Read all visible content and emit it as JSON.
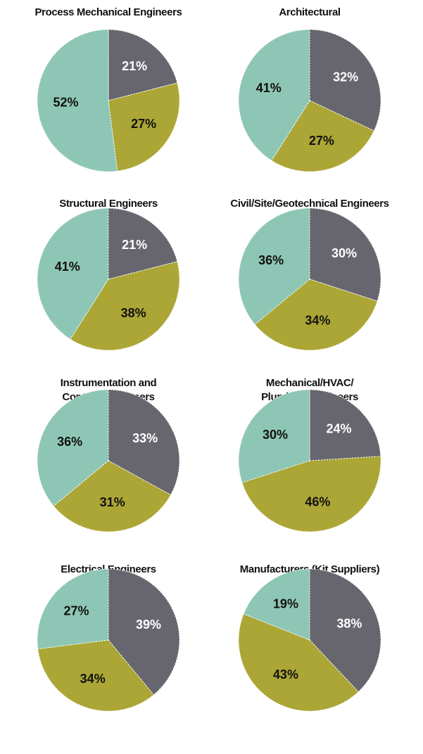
{
  "chart_data": [
    {
      "type": "pie",
      "title": "Process Mechanical Engineers",
      "values": [
        21,
        27,
        52
      ],
      "value_labels": [
        "21%",
        "27%",
        "52%"
      ],
      "colors": [
        "#67666f",
        "#aba635",
        "#8ec6b5"
      ],
      "label_colors": [
        "#ffffff",
        "#111111",
        "#111111"
      ]
    },
    {
      "type": "pie",
      "title": "Architectural",
      "values": [
        32,
        27,
        41
      ],
      "value_labels": [
        "32%",
        "27%",
        "41%"
      ],
      "colors": [
        "#67666f",
        "#aba635",
        "#8ec6b5"
      ],
      "label_colors": [
        "#ffffff",
        "#111111",
        "#111111"
      ]
    },
    {
      "type": "pie",
      "title": "Structural Engineers",
      "values": [
        21,
        38,
        41
      ],
      "value_labels": [
        "21%",
        "38%",
        "41%"
      ],
      "colors": [
        "#67666f",
        "#aba635",
        "#8ec6b5"
      ],
      "label_colors": [
        "#ffffff",
        "#111111",
        "#111111"
      ]
    },
    {
      "type": "pie",
      "title": "Civil/Site/Geotechnical Engineers",
      "values": [
        30,
        34,
        36
      ],
      "value_labels": [
        "30%",
        "34%",
        "36%"
      ],
      "colors": [
        "#67666f",
        "#aba635",
        "#8ec6b5"
      ],
      "label_colors": [
        "#ffffff",
        "#111111",
        "#111111"
      ]
    },
    {
      "type": "pie",
      "title": [
        "Instrumentation and",
        "Controls Engineers"
      ],
      "values": [
        33,
        31,
        36
      ],
      "value_labels": [
        "33%",
        "31%",
        "36%"
      ],
      "colors": [
        "#67666f",
        "#aba635",
        "#8ec6b5"
      ],
      "label_colors": [
        "#ffffff",
        "#111111",
        "#111111"
      ]
    },
    {
      "type": "pie",
      "title": [
        "Mechanical/HVAC/",
        "Plumbing Engineers"
      ],
      "values": [
        24,
        46,
        30
      ],
      "value_labels": [
        "24%",
        "46%",
        "30%"
      ],
      "colors": [
        "#67666f",
        "#aba635",
        "#8ec6b5"
      ],
      "label_colors": [
        "#ffffff",
        "#111111",
        "#111111"
      ]
    },
    {
      "type": "pie",
      "title": "Electrical Engineers",
      "values": [
        39,
        34,
        27
      ],
      "value_labels": [
        "39%",
        "34%",
        "27%"
      ],
      "colors": [
        "#67666f",
        "#aba635",
        "#8ec6b5"
      ],
      "label_colors": [
        "#ffffff",
        "#111111",
        "#111111"
      ]
    },
    {
      "type": "pie",
      "title": "Manufacturers (Kit Suppliers)",
      "values": [
        38,
        43,
        19
      ],
      "value_labels": [
        "38%",
        "43%",
        "19%"
      ],
      "colors": [
        "#67666f",
        "#aba635",
        "#8ec6b5"
      ],
      "label_colors": [
        "#ffffff",
        "#111111",
        "#111111"
      ]
    }
  ]
}
